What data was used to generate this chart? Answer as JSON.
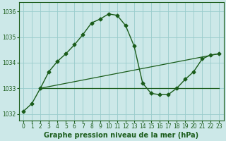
{
  "title": "Graphe pression niveau de la mer (hPa)",
  "bg_color": "#cce8e8",
  "grid_color": "#99cccc",
  "line_color": "#1a5c1a",
  "xlim": [
    -0.5,
    23.5
  ],
  "ylim": [
    1031.75,
    1036.35
  ],
  "yticks": [
    1032,
    1033,
    1034,
    1035,
    1036
  ],
  "xticks": [
    0,
    1,
    2,
    3,
    4,
    5,
    6,
    7,
    8,
    9,
    10,
    11,
    12,
    13,
    14,
    15,
    16,
    17,
    18,
    19,
    20,
    21,
    22,
    23
  ],
  "series1_x": [
    0,
    1,
    2,
    3,
    4,
    5,
    6,
    7,
    8,
    9,
    10,
    11,
    12,
    13,
    14,
    15,
    16,
    17,
    18,
    19,
    20,
    21,
    22,
    23
  ],
  "series1_y": [
    1032.1,
    1032.4,
    1033.0,
    1033.65,
    1034.05,
    1034.35,
    1034.7,
    1035.1,
    1035.55,
    1035.7,
    1035.9,
    1035.85,
    1035.45,
    1034.65,
    1033.2,
    1032.8,
    1032.75,
    1032.75,
    1033.0,
    1033.35,
    1033.65,
    1034.15,
    1034.3,
    1034.35
  ],
  "line1_x": [
    2,
    23
  ],
  "line1_y": [
    1033.0,
    1033.0
  ],
  "line2_x": [
    2,
    23
  ],
  "line2_y": [
    1033.0,
    1034.35
  ],
  "marker": "D",
  "marker_size": 2.5,
  "title_fontsize": 7,
  "tick_fontsize": 5.5
}
